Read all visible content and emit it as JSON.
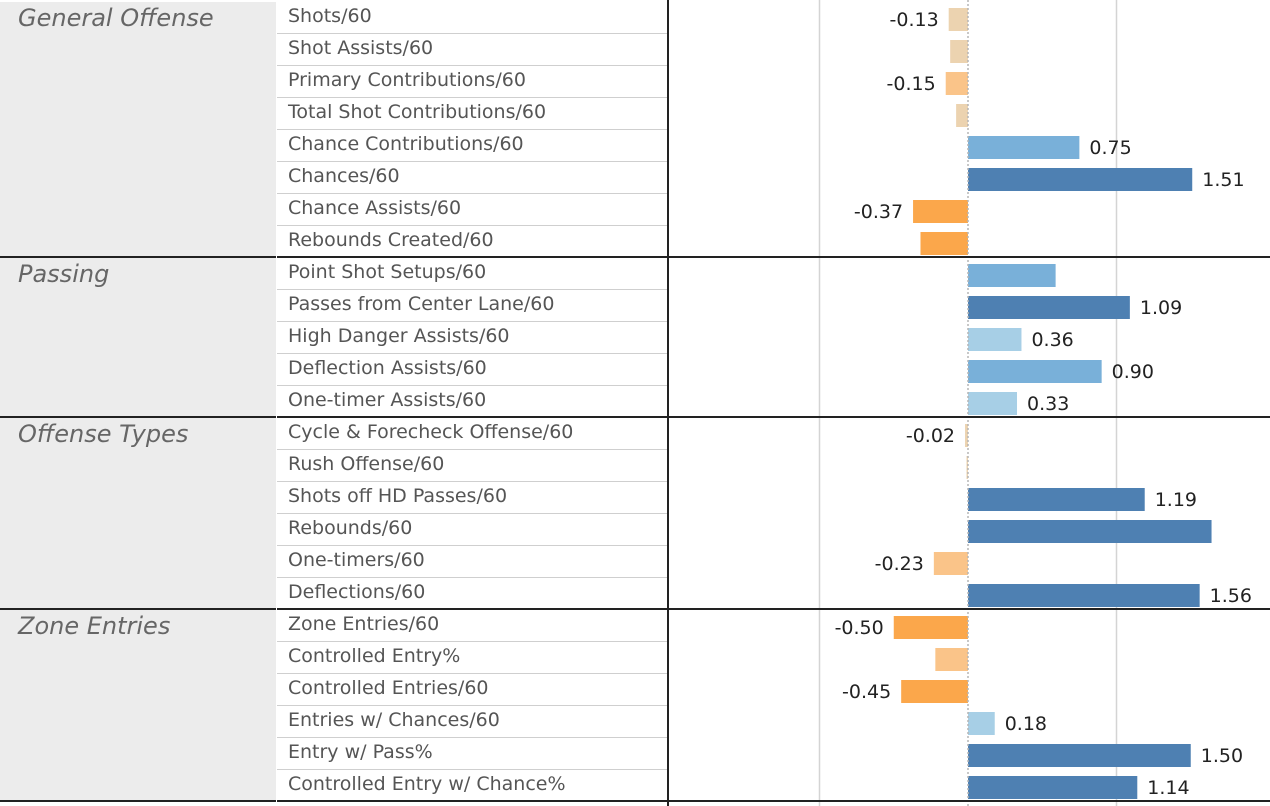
{
  "chart_data": {
    "type": "bar",
    "orientation": "horizontal",
    "title": "",
    "xlabel": "",
    "ylabel": "",
    "xlim": [
      -1.0,
      1.7
    ],
    "grid": true,
    "zero_line": "dotted",
    "colors": {
      "pos_light": "#a7cfe6",
      "pos_mid": "#79b0d9",
      "pos_dark": "#4e80b2",
      "neg_light": "#ecd3b0",
      "neg_mid": "#fac489",
      "neg_dark": "#fba74b"
    },
    "groups": [
      {
        "name": "General Offense",
        "items": [
          {
            "label": "Shots/60",
            "value": -0.13,
            "value_label": "-0.13"
          },
          {
            "label": "Shot Assists/60",
            "value": -0.12,
            "value_label": ""
          },
          {
            "label": "Primary Contributions/60",
            "value": -0.15,
            "value_label": "-0.15"
          },
          {
            "label": "Total Shot Contributions/60",
            "value": -0.08,
            "value_label": ""
          },
          {
            "label": "Chance Contributions/60",
            "value": 0.75,
            "value_label": "0.75"
          },
          {
            "label": "Chances/60",
            "value": 1.51,
            "value_label": "1.51"
          },
          {
            "label": "Chance Assists/60",
            "value": -0.37,
            "value_label": "-0.37"
          },
          {
            "label": "Rebounds Created/60",
            "value": -0.32,
            "value_label": ""
          }
        ]
      },
      {
        "name": "Passing",
        "items": [
          {
            "label": "Point Shot Setups/60",
            "value": 0.59,
            "value_label": ""
          },
          {
            "label": "Passes from Center Lane/60",
            "value": 1.09,
            "value_label": "1.09"
          },
          {
            "label": "High Danger Assists/60",
            "value": 0.36,
            "value_label": "0.36"
          },
          {
            "label": "Deflection Assists/60",
            "value": 0.9,
            "value_label": "0.90"
          },
          {
            "label": "One-timer Assists/60",
            "value": 0.33,
            "value_label": "0.33"
          }
        ]
      },
      {
        "name": "Offense Types",
        "items": [
          {
            "label": "Cycle & Forecheck Offense/60",
            "value": -0.02,
            "value_label": "-0.02"
          },
          {
            "label": "Rush Offense/60",
            "value": -0.01,
            "value_label": ""
          },
          {
            "label": "Shots off HD Passes/60",
            "value": 1.19,
            "value_label": "1.19"
          },
          {
            "label": "Rebounds/60",
            "value": 1.64,
            "value_label": ""
          },
          {
            "label": "One-timers/60",
            "value": -0.23,
            "value_label": "-0.23"
          },
          {
            "label": "Deflections/60",
            "value": 1.56,
            "value_label": "1.56"
          }
        ]
      },
      {
        "name": "Zone Entries",
        "items": [
          {
            "label": "Zone Entries/60",
            "value": -0.5,
            "value_label": "-0.50"
          },
          {
            "label": "Controlled Entry%",
            "value": -0.22,
            "value_label": ""
          },
          {
            "label": "Controlled Entries/60",
            "value": -0.45,
            "value_label": "-0.45"
          },
          {
            "label": "Entries w/ Chances/60",
            "value": 0.18,
            "value_label": "0.18"
          },
          {
            "label": "Entry w/ Pass%",
            "value": 1.5,
            "value_label": "1.50"
          },
          {
            "label": "Controlled Entry w/ Chance%",
            "value": 1.14,
            "value_label": "1.14"
          }
        ]
      }
    ]
  }
}
